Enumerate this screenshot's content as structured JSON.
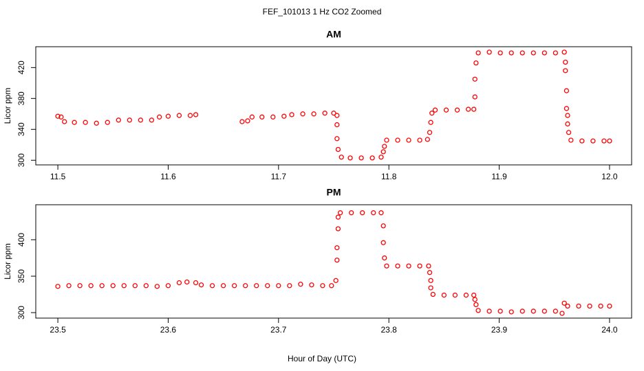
{
  "title": "FEF_101013  1 Hz CO2 Zoomed",
  "x_label": "Hour of Day (UTC)",
  "chart_data": [
    {
      "type": "scatter",
      "title": "AM",
      "y_label": "Licor ppm",
      "color": "#ff0000",
      "xlim": [
        11.48,
        12.02
      ],
      "xticks": [
        11.5,
        11.6,
        11.7,
        11.8,
        11.9,
        {
          "value": 12,
          "label": "12.0"
        }
      ],
      "ylim": [
        294,
        447
      ],
      "yticks": [
        300,
        340,
        380,
        420
      ],
      "x": [
        11.5,
        11.503,
        11.506,
        11.515,
        11.525,
        11.535,
        11.545,
        11.555,
        11.565,
        11.575,
        11.585,
        11.592,
        11.6,
        11.61,
        11.62,
        11.625,
        11.667,
        11.672,
        11.676,
        11.685,
        11.695,
        11.705,
        11.712,
        11.722,
        11.732,
        11.742,
        11.75,
        11.753,
        11.753,
        11.753,
        11.754,
        11.757,
        11.765,
        11.775,
        11.785,
        11.793,
        11.795,
        11.796,
        11.798,
        11.808,
        11.818,
        11.828,
        11.835,
        11.837,
        11.838,
        11.839,
        11.842,
        11.852,
        11.862,
        11.872,
        11.877,
        11.878,
        11.878,
        11.879,
        11.881,
        11.891,
        11.901,
        11.911,
        11.921,
        11.931,
        11.941,
        11.951,
        11.959,
        11.96,
        11.96,
        11.961,
        11.961,
        11.962,
        11.962,
        11.963,
        11.965,
        11.975,
        11.985,
        11.995,
        12.0
      ],
      "values": [
        357,
        356,
        350,
        349,
        349,
        348,
        349,
        352,
        352,
        352,
        352,
        356,
        357,
        358,
        358,
        359,
        350,
        351,
        356,
        356,
        356,
        357,
        359,
        360,
        360,
        361,
        361,
        358,
        346,
        328,
        314,
        304,
        303,
        303,
        303,
        304,
        311,
        318,
        326,
        326,
        326,
        326,
        327,
        336,
        349,
        361,
        365,
        365,
        365,
        366,
        366,
        382,
        405,
        426,
        439,
        440,
        439,
        439,
        439,
        439,
        439,
        439,
        440,
        427,
        416,
        390,
        367,
        358,
        347,
        336,
        326,
        325,
        325,
        325,
        325
      ]
    },
    {
      "type": "scatter",
      "title": "PM",
      "y_label": "Licor ppm",
      "color": "#ff0000",
      "xlim": [
        23.48,
        24.02
      ],
      "xticks": [
        23.5,
        23.6,
        23.7,
        23.8,
        23.9,
        {
          "value": 24,
          "label": "24.0"
        }
      ],
      "ylim": [
        292.5,
        448
      ],
      "yticks": [
        300,
        350,
        400
      ],
      "x": [
        23.5,
        23.51,
        23.52,
        23.53,
        23.54,
        23.55,
        23.56,
        23.57,
        23.58,
        23.59,
        23.6,
        23.61,
        23.617,
        23.625,
        23.63,
        23.64,
        23.65,
        23.66,
        23.67,
        23.68,
        23.69,
        23.7,
        23.71,
        23.72,
        23.73,
        23.74,
        23.748,
        23.752,
        23.753,
        23.753,
        23.754,
        23.754,
        23.756,
        23.766,
        23.776,
        23.786,
        23.793,
        23.795,
        23.795,
        23.796,
        23.798,
        23.808,
        23.818,
        23.828,
        23.836,
        23.837,
        23.838,
        23.838,
        23.84,
        23.85,
        23.86,
        23.87,
        23.877,
        23.878,
        23.879,
        23.881,
        23.891,
        23.901,
        23.911,
        23.921,
        23.931,
        23.941,
        23.951,
        23.957,
        23.959,
        23.962,
        23.972,
        23.982,
        23.992,
        24.0
      ],
      "values": [
        336,
        337,
        337,
        337,
        337,
        337,
        337,
        337,
        337,
        336,
        337,
        341,
        342,
        341,
        338,
        337,
        337,
        337,
        337,
        337,
        337,
        337,
        337,
        339,
        338,
        337,
        337,
        344,
        372,
        389,
        415,
        431,
        437,
        437,
        437,
        437,
        437,
        419,
        396,
        375,
        364,
        364,
        364,
        364,
        364,
        355,
        344,
        334,
        325,
        324,
        324,
        324,
        324,
        318,
        311,
        303,
        302,
        302,
        301,
        302,
        302,
        302,
        302,
        299,
        313,
        309,
        309,
        309,
        309,
        309
      ]
    }
  ]
}
